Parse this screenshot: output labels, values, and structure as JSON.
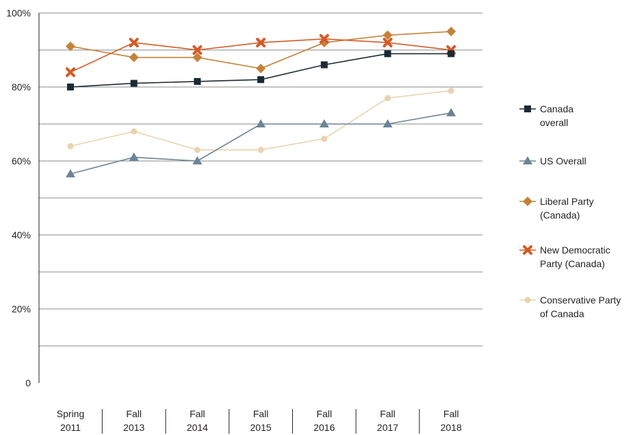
{
  "chart_data": {
    "type": "line",
    "title": "",
    "xlabel": "",
    "ylabel": "",
    "ylim": [
      0,
      100
    ],
    "grid": true,
    "legend_position": "right",
    "y_ticks": [
      "0",
      "20%",
      "40%",
      "60%",
      "80%",
      "100%"
    ],
    "categories": [
      [
        "Spring",
        "2011"
      ],
      [
        "Fall",
        "2013"
      ],
      [
        "Fall",
        "2014"
      ],
      [
        "Fall",
        "2015"
      ],
      [
        "Fall",
        "2016"
      ],
      [
        "Fall",
        "2017"
      ],
      [
        "Fall",
        "2018"
      ]
    ],
    "series": [
      {
        "name": [
          "Canada",
          "overall"
        ],
        "marker": "square",
        "color": "#1b2a33",
        "values": [
          80,
          81,
          81.5,
          82,
          86,
          89,
          89
        ]
      },
      {
        "name": [
          "US Overall"
        ],
        "marker": "triangle",
        "color": "#6d8495",
        "values": [
          56.5,
          61,
          60,
          70,
          70,
          70,
          73
        ]
      },
      {
        "name": [
          "Liberal Party",
          "(Canada)"
        ],
        "marker": "diamond",
        "color": "#c4833a",
        "values": [
          91,
          88,
          88,
          85,
          92,
          94,
          95
        ]
      },
      {
        "name": [
          "New Democratic",
          "Party (Canada)"
        ],
        "marker": "x",
        "color": "#d45a27",
        "values": [
          84,
          92,
          90,
          92,
          93,
          92,
          90
        ]
      },
      {
        "name": [
          "Conservative Party",
          "of Canada"
        ],
        "marker": "circle",
        "color": "#e8d4b0",
        "values": [
          64,
          68,
          63,
          63,
          66,
          77,
          79
        ]
      }
    ]
  }
}
